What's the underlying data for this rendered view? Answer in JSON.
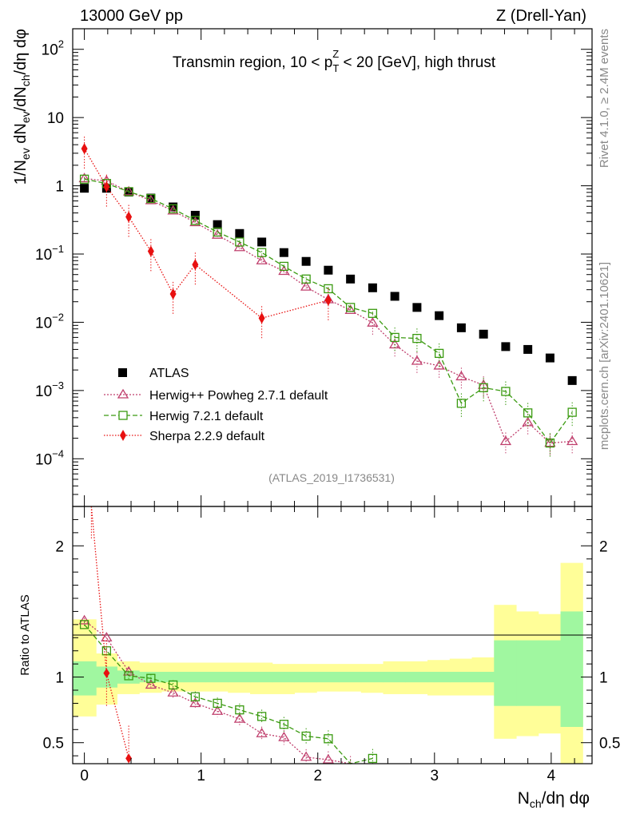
{
  "header": {
    "left": "13000 GeV pp",
    "right": "Z (Drell-Yan)"
  },
  "side_labels": {
    "rivet": "Rivet 4.1.0, ≥ 2.4M events",
    "mcplots": "mcplots.cern.ch [arXiv:2401.10621]"
  },
  "colors": {
    "atlas": "#000000",
    "herwigpp": "#c0406e",
    "herwig7": "#3a9a10",
    "sherpa": "#e81010",
    "band_inner": "#a0f7a0",
    "band_outer": "#fffe98"
  },
  "chart_data": [
    {
      "type": "scatter",
      "title_parts": {
        "pre": "Transmin region, 10 < p",
        "sub": "T",
        "sup": "Z",
        "post": " < 20 [GeV], high thrust"
      },
      "ylabel": "1/N_ev dN_ev/dN_ch/dη dφ",
      "yscale": "log",
      "ylim": [
        2e-05,
        200
      ],
      "xlim": [
        -0.1,
        4.35
      ],
      "y_tick_labels": [
        {
          "value": 100,
          "mant": "10",
          "exp": "2"
        },
        {
          "value": 10,
          "mant": "10",
          "exp": ""
        },
        {
          "value": 1,
          "mant": "1",
          "exp": ""
        },
        {
          "value": 0.1,
          "mant": "10",
          "exp": "−1"
        },
        {
          "value": 0.01,
          "mant": "10",
          "exp": "−2"
        },
        {
          "value": 0.001,
          "mant": "10",
          "exp": "−3"
        },
        {
          "value": 0.0001,
          "mant": "10",
          "exp": "−4"
        }
      ],
      "watermark": "(ATLAS_2019_I1736531)",
      "legend_position": "bottom-left",
      "series": [
        {
          "name": "ATLAS",
          "marker": "square",
          "x": [
            0,
            0.19,
            0.38,
            0.57,
            0.76,
            0.95,
            1.14,
            1.33,
            1.52,
            1.71,
            1.9,
            2.09,
            2.28,
            2.47,
            2.66,
            2.85,
            3.04,
            3.23,
            3.42,
            3.61,
            3.8,
            3.99,
            4.18
          ],
          "y": [
            0.92,
            0.92,
            0.81,
            0.66,
            0.49,
            0.37,
            0.27,
            0.2,
            0.15,
            0.105,
            0.078,
            0.058,
            0.043,
            0.032,
            0.024,
            0.0165,
            0.0125,
            0.0083,
            0.0067,
            0.0044,
            0.004,
            0.003,
            0.0014
          ]
        },
        {
          "name": "Herwig++ Powheg 2.7.1 default",
          "marker": "triangle",
          "x": [
            0,
            0.19,
            0.38,
            0.57,
            0.76,
            0.95,
            1.14,
            1.33,
            1.52,
            1.71,
            1.9,
            2.09,
            2.28,
            2.47,
            2.66,
            2.85,
            3.04,
            3.23,
            3.42,
            3.61,
            3.8,
            3.99,
            4.18
          ],
          "y": [
            1.28,
            1.18,
            0.82,
            0.61,
            0.43,
            0.29,
            0.19,
            0.125,
            0.08,
            0.056,
            0.033,
            0.0215,
            0.015,
            0.0098,
            0.0047,
            0.0027,
            0.0023,
            0.0016,
            0.0012,
            0.00018,
            0.00034,
            0.00017,
            0.00018
          ]
        },
        {
          "name": "Herwig 7.2.1 default",
          "marker": "open-square",
          "x": [
            0,
            0.19,
            0.38,
            0.57,
            0.76,
            0.95,
            1.14,
            1.33,
            1.52,
            1.71,
            1.9,
            2.09,
            2.28,
            2.47,
            2.66,
            2.85,
            3.04,
            3.23,
            3.42,
            3.61,
            3.8,
            3.99,
            4.18
          ],
          "y": [
            1.25,
            1.08,
            0.82,
            0.65,
            0.46,
            0.31,
            0.21,
            0.15,
            0.105,
            0.066,
            0.043,
            0.031,
            0.0165,
            0.0135,
            0.006,
            0.0058,
            0.0035,
            0.00065,
            0.0011,
            0.00097,
            0.00047,
            0.00017,
            0.00048
          ]
        },
        {
          "name": "Sherpa 2.2.9 default",
          "marker": "diamond",
          "x": [
            0,
            0.19,
            0.38,
            0.57,
            0.76,
            0.95,
            1.52,
            2.09
          ],
          "y": [
            3.5,
            0.97,
            0.35,
            0.11,
            0.026,
            0.07,
            0.0115,
            0.021
          ]
        }
      ]
    },
    {
      "type": "line",
      "ylabel": "Ratio to ATLAS",
      "xlabel_parts": {
        "pre": "N",
        "sub": "ch",
        "post": "/dη dφ"
      },
      "ylim": [
        0.34,
        2.3
      ],
      "xlim": [
        -0.1,
        4.35
      ],
      "y_tick_labels": [
        {
          "value": 0.5,
          "label": "0.5"
        },
        {
          "value": 1,
          "label": "1"
        },
        {
          "value": 2,
          "label": "2"
        }
      ],
      "x_tick_labels": [
        {
          "value": 0,
          "label": "0"
        },
        {
          "value": 1,
          "label": "1"
        },
        {
          "value": 2,
          "label": "2"
        },
        {
          "value": 3,
          "label": "3"
        },
        {
          "value": 4,
          "label": "4"
        }
      ],
      "band_bin_edges": [
        -0.1,
        0.1,
        0.28,
        0.47,
        0.66,
        0.85,
        1.04,
        1.23,
        1.42,
        1.61,
        1.8,
        1.99,
        2.18,
        2.37,
        2.56,
        2.75,
        2.94,
        3.13,
        3.32,
        3.51,
        3.7,
        3.89,
        4.08,
        4.27
      ],
      "band_inner": [
        [
          0.86,
          1.12
        ],
        [
          0.92,
          1.08
        ],
        [
          0.95,
          1.05
        ],
        [
          0.96,
          1.04
        ],
        [
          0.96,
          1.04
        ],
        [
          0.96,
          1.04
        ],
        [
          0.96,
          1.04
        ],
        [
          0.96,
          1.04
        ],
        [
          0.96,
          1.04
        ],
        [
          0.96,
          1.04
        ],
        [
          0.96,
          1.04
        ],
        [
          0.96,
          1.04
        ],
        [
          0.96,
          1.04
        ],
        [
          0.96,
          1.04
        ],
        [
          0.96,
          1.04
        ],
        [
          0.96,
          1.04
        ],
        [
          0.96,
          1.04
        ],
        [
          0.96,
          1.04
        ],
        [
          0.96,
          1.04
        ],
        [
          0.78,
          1.28
        ],
        [
          0.78,
          1.28
        ],
        [
          0.78,
          1.28
        ],
        [
          0.62,
          1.5
        ]
      ],
      "band_outer": [
        [
          0.7,
          1.44
        ],
        [
          0.79,
          1.18
        ],
        [
          0.87,
          1.12
        ],
        [
          0.88,
          1.11
        ],
        [
          0.89,
          1.11
        ],
        [
          0.89,
          1.11
        ],
        [
          0.89,
          1.11
        ],
        [
          0.88,
          1.11
        ],
        [
          0.87,
          1.11
        ],
        [
          0.87,
          1.1
        ],
        [
          0.88,
          1.1
        ],
        [
          0.89,
          1.1
        ],
        [
          0.89,
          1.1
        ],
        [
          0.88,
          1.1
        ],
        [
          0.87,
          1.12
        ],
        [
          0.87,
          1.12
        ],
        [
          0.86,
          1.13
        ],
        [
          0.86,
          1.14
        ],
        [
          0.86,
          1.15
        ],
        [
          0.53,
          1.55
        ],
        [
          0.55,
          1.5
        ],
        [
          0.57,
          1.48
        ],
        [
          0.34,
          1.87
        ]
      ],
      "series": [
        {
          "name": "Herwig++ Powheg 2.7.1 default",
          "x": [
            0,
            0.19,
            0.38,
            0.57,
            0.76,
            0.95,
            1.14,
            1.33,
            1.52,
            1.71,
            1.9,
            2.09,
            2.28
          ],
          "y": [
            1.43,
            1.3,
            1.04,
            0.94,
            0.88,
            0.8,
            0.74,
            0.68,
            0.57,
            0.54,
            0.39,
            0.37,
            0.33
          ]
        },
        {
          "name": "Herwig 7.2.1 default",
          "x": [
            0,
            0.19,
            0.38,
            0.57,
            0.76,
            0.95,
            1.14,
            1.33,
            1.52,
            1.71,
            1.9,
            2.09,
            2.28,
            2.47
          ],
          "y": [
            1.4,
            1.2,
            1.01,
            0.99,
            0.94,
            0.85,
            0.8,
            0.75,
            0.7,
            0.64,
            0.55,
            0.53,
            0.3,
            0.38
          ]
        },
        {
          "name": "Sherpa 2.2.9 default",
          "x": [
            0.06,
            0.19,
            0.38
          ],
          "y": [
            2.3,
            1.03,
            0.38
          ]
        }
      ]
    }
  ]
}
